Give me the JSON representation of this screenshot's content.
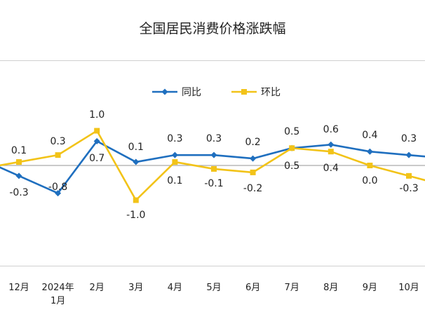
{
  "chart_data": {
    "type": "line",
    "title": "全国居民消费价格涨跌幅",
    "categories": [
      [
        "12月"
      ],
      [
        "2024年",
        "1月"
      ],
      [
        "2月"
      ],
      [
        "3月"
      ],
      [
        "4月"
      ],
      [
        "5月"
      ],
      [
        "6月"
      ],
      [
        "7月"
      ],
      [
        "8月"
      ],
      [
        "9月"
      ],
      [
        "10月"
      ]
    ],
    "series": [
      {
        "name": "同比",
        "color": "#1f6fbf",
        "values": [
          -0.3,
          -0.8,
          0.7,
          0.1,
          0.3,
          0.3,
          0.2,
          0.5,
          0.6,
          0.4,
          0.3
        ],
        "labels": [
          "-0.3",
          "-0.8",
          "0.7",
          "0.1",
          "0.3",
          "0.3",
          "0.2",
          "0.5",
          "0.6",
          "0.4",
          "0.3"
        ]
      },
      {
        "name": "环比",
        "color": "#f2c318",
        "values": [
          0.1,
          0.3,
          1.0,
          -1.0,
          0.1,
          -0.1,
          -0.2,
          0.5,
          0.4,
          0.0,
          -0.3
        ],
        "labels": [
          "0.1",
          "0.3",
          "1.0",
          "-1.0",
          "0.1",
          "-0.1",
          "-0.2",
          "0.5",
          "0.4",
          "0.0",
          "-0.3"
        ]
      }
    ],
    "legend_position": "top-center",
    "zero_line": true,
    "ylim": [
      -2.2,
      1.6
    ]
  }
}
